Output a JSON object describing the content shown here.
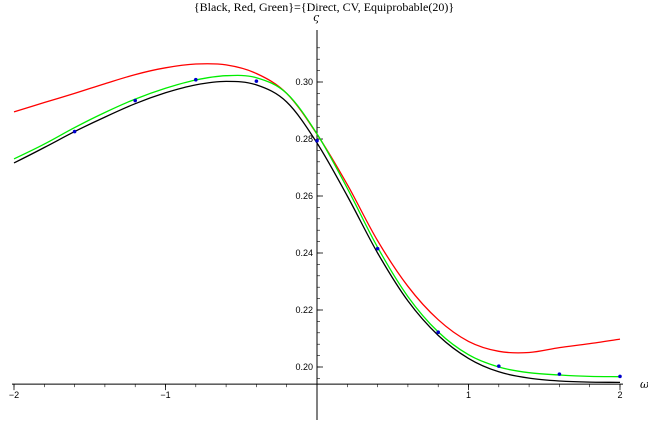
{
  "chart_data": {
    "type": "line",
    "title": "{Black, Red, Green}={Direct, CV, Equiprobable(20)}",
    "xlabel": "ω",
    "ylabel": "ς",
    "xlim": [
      -2,
      2
    ],
    "ylim": [
      0.194,
      0.316
    ],
    "x_ticks": [
      -2,
      -1,
      1,
      2
    ],
    "x_tick_labels": [
      "−2",
      "−1",
      "1",
      "2"
    ],
    "y_ticks": [
      0.2,
      0.22,
      0.24,
      0.26,
      0.28,
      0.3
    ],
    "y_tick_labels": [
      "0.20",
      "0.22",
      "0.24",
      "0.26",
      "0.28",
      "0.30"
    ],
    "legend": "none",
    "grid": false,
    "x": [
      -2.0,
      -1.8,
      -1.6,
      -1.4,
      -1.2,
      -1.0,
      -0.8,
      -0.6,
      -0.4,
      -0.2,
      0.0,
      0.2,
      0.4,
      0.6,
      0.8,
      1.0,
      1.2,
      1.4,
      1.6,
      1.8,
      2.0
    ],
    "series": [
      {
        "color": "#000000",
        "values": [
          0.2716,
          0.277,
          0.2826,
          0.2877,
          0.2924,
          0.2962,
          0.299,
          0.3002,
          0.299,
          0.293,
          0.2786,
          0.26,
          0.24,
          0.2232,
          0.2111,
          0.203,
          0.1983,
          0.1961,
          0.1951,
          0.1947,
          0.1946
        ]
      },
      {
        "color": "#ff0000",
        "values": [
          0.2895,
          0.2928,
          0.296,
          0.2994,
          0.3026,
          0.305,
          0.3063,
          0.306,
          0.303,
          0.296,
          0.2817,
          0.264,
          0.2443,
          0.2283,
          0.2166,
          0.209,
          0.2055,
          0.2051,
          0.2068,
          0.2082,
          0.2098
        ]
      },
      {
        "color": "#00ee00",
        "values": [
          0.273,
          0.2782,
          0.284,
          0.2893,
          0.294,
          0.2978,
          0.3007,
          0.3022,
          0.3015,
          0.296,
          0.2818,
          0.2627,
          0.242,
          0.2247,
          0.2123,
          0.2043,
          0.2,
          0.198,
          0.1972,
          0.1967,
          0.1966
        ]
      }
    ],
    "markers": {
      "color": "#0000cc",
      "x": [
        -1.6,
        -1.2,
        -0.8,
        -0.4,
        0.0,
        0.4,
        0.8,
        1.2,
        1.6,
        2.0
      ],
      "y": [
        0.2826,
        0.2935,
        0.3008,
        0.3003,
        0.2794,
        0.2415,
        0.2122,
        0.2003,
        0.1975,
        0.1967
      ]
    }
  }
}
